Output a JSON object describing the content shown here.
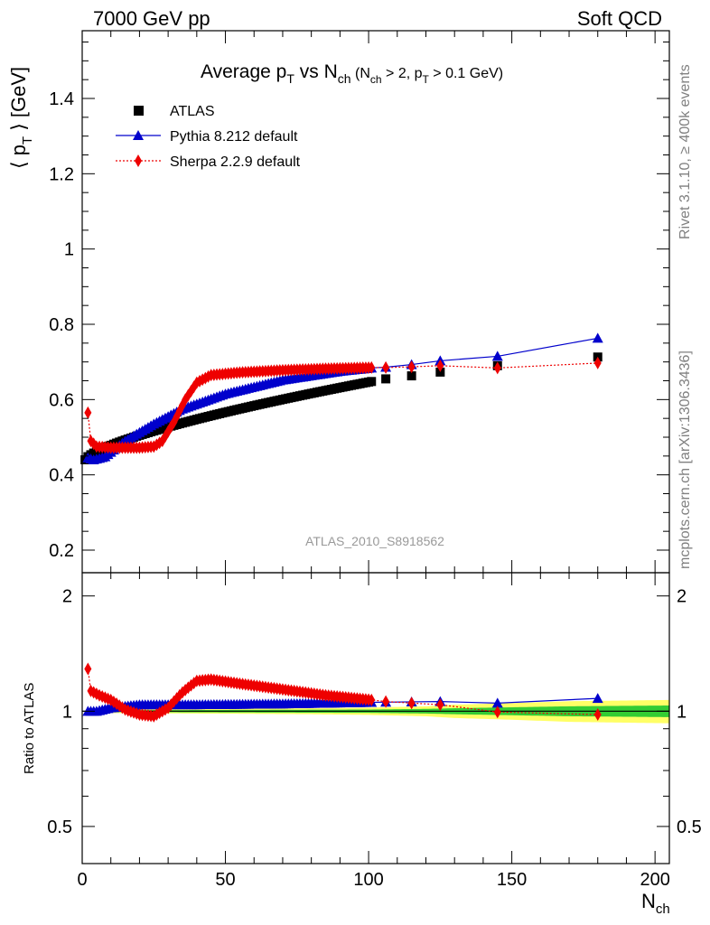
{
  "header": {
    "left": "7000 GeV pp",
    "right": "Soft QCD"
  },
  "side_labels": {
    "rivet": "Rivet 3.1.10, ≥ 400k events",
    "mcplots": "mcplots.cern.ch [arXiv:1306.3436]"
  },
  "analysis_id": "ATLAS_2010_S8918562",
  "chart_data": {
    "type": "scatter",
    "title": {
      "main": "Average p",
      "main_sub": "T",
      "mid": " vs N",
      "mid_sub": "ch",
      "cuts_a": " (N",
      "cuts_a_sub": "ch",
      "cuts_b": " > 2, p",
      "cuts_b_sub": "T",
      "cuts_c": " > 0.1 GeV)"
    },
    "ylabel": {
      "open": "⟨ p",
      "sub": "T",
      "close": " ⟩  [GeV]"
    },
    "xlabel": {
      "main": "N",
      "sub": "ch"
    },
    "ratio_ylabel": "Ratio to ATLAS",
    "xlim": [
      0,
      205
    ],
    "ylim": [
      0.14,
      1.58
    ],
    "ratio_ylim": [
      0.4,
      2.3
    ],
    "x_ticks": [
      "0",
      "50",
      "100",
      "150",
      "200"
    ],
    "y_ticks": [
      "0.2",
      "0.4",
      "0.6",
      "0.8",
      "1",
      "1.2",
      "1.4"
    ],
    "ratio_ticks_left": [
      "0.5",
      "1",
      "2"
    ],
    "ratio_ticks_right": [
      "0.5",
      "1",
      "2"
    ],
    "legend_position": "top-left",
    "series": [
      {
        "name": "ATLAS",
        "color": "#000000",
        "marker": "square",
        "x_dense_start": 1,
        "x_dense_end": 101,
        "y_start": 0.44,
        "y_end": 0.648,
        "sparse_x": [
          106,
          115,
          125,
          145,
          180
        ],
        "sparse_y": [
          0.655,
          0.663,
          0.673,
          0.69,
          0.713
        ]
      },
      {
        "name": "Pythia 8.212 default",
        "color": "#0000cc",
        "marker": "triangle",
        "anchors_x": [
          2,
          4,
          8,
          15,
          25,
          35,
          50,
          70,
          90,
          101,
          106,
          115,
          125,
          145,
          180
        ],
        "anchors_y": [
          0.445,
          0.44,
          0.448,
          0.49,
          0.535,
          0.575,
          0.615,
          0.652,
          0.675,
          0.684,
          0.686,
          0.693,
          0.703,
          0.715,
          0.763
        ]
      },
      {
        "name": "Sherpa 2.2.9 default",
        "color": "#ee0000",
        "marker": "diamond",
        "anchors_x": [
          2,
          3,
          5,
          10,
          20,
          25,
          28,
          32,
          36,
          40,
          45,
          55,
          70,
          85,
          101,
          106,
          115,
          125,
          145,
          180
        ],
        "anchors_y": [
          0.565,
          0.49,
          0.475,
          0.472,
          0.472,
          0.475,
          0.49,
          0.54,
          0.6,
          0.645,
          0.665,
          0.672,
          0.678,
          0.682,
          0.685,
          0.685,
          0.687,
          0.69,
          0.684,
          0.697
        ]
      }
    ],
    "ratio_series": [
      {
        "name": "Pythia 8.212 default",
        "anchors_x": [
          2,
          5,
          10,
          20,
          40,
          70,
          101,
          125,
          145,
          180
        ],
        "anchors_y": [
          1.0,
          1.0,
          1.02,
          1.04,
          1.04,
          1.045,
          1.055,
          1.06,
          1.05,
          1.08
        ]
      },
      {
        "name": "Sherpa 2.2.9 default",
        "anchors_x": [
          2,
          3,
          6,
          10,
          15,
          20,
          25,
          30,
          35,
          40,
          45,
          55,
          70,
          85,
          101,
          106,
          115,
          125,
          145,
          180
        ],
        "anchors_y": [
          1.29,
          1.13,
          1.1,
          1.07,
          1.01,
          0.98,
          0.97,
          1.02,
          1.12,
          1.2,
          1.21,
          1.18,
          1.14,
          1.1,
          1.07,
          1.06,
          1.05,
          1.04,
          0.995,
          0.98
        ]
      }
    ],
    "ratio_band": {
      "x": [
        2,
        20,
        40,
        60,
        80,
        100,
        110,
        120,
        130,
        150,
        170,
        205
      ],
      "inner": [
        0.005,
        0.006,
        0.007,
        0.008,
        0.009,
        0.01,
        0.012,
        0.014,
        0.018,
        0.024,
        0.03,
        0.035
      ],
      "outer": [
        0.01,
        0.012,
        0.014,
        0.016,
        0.018,
        0.022,
        0.026,
        0.03,
        0.04,
        0.05,
        0.062,
        0.07
      ],
      "inner_color": "#33cc33",
      "outer_color": "#ffff66"
    }
  }
}
